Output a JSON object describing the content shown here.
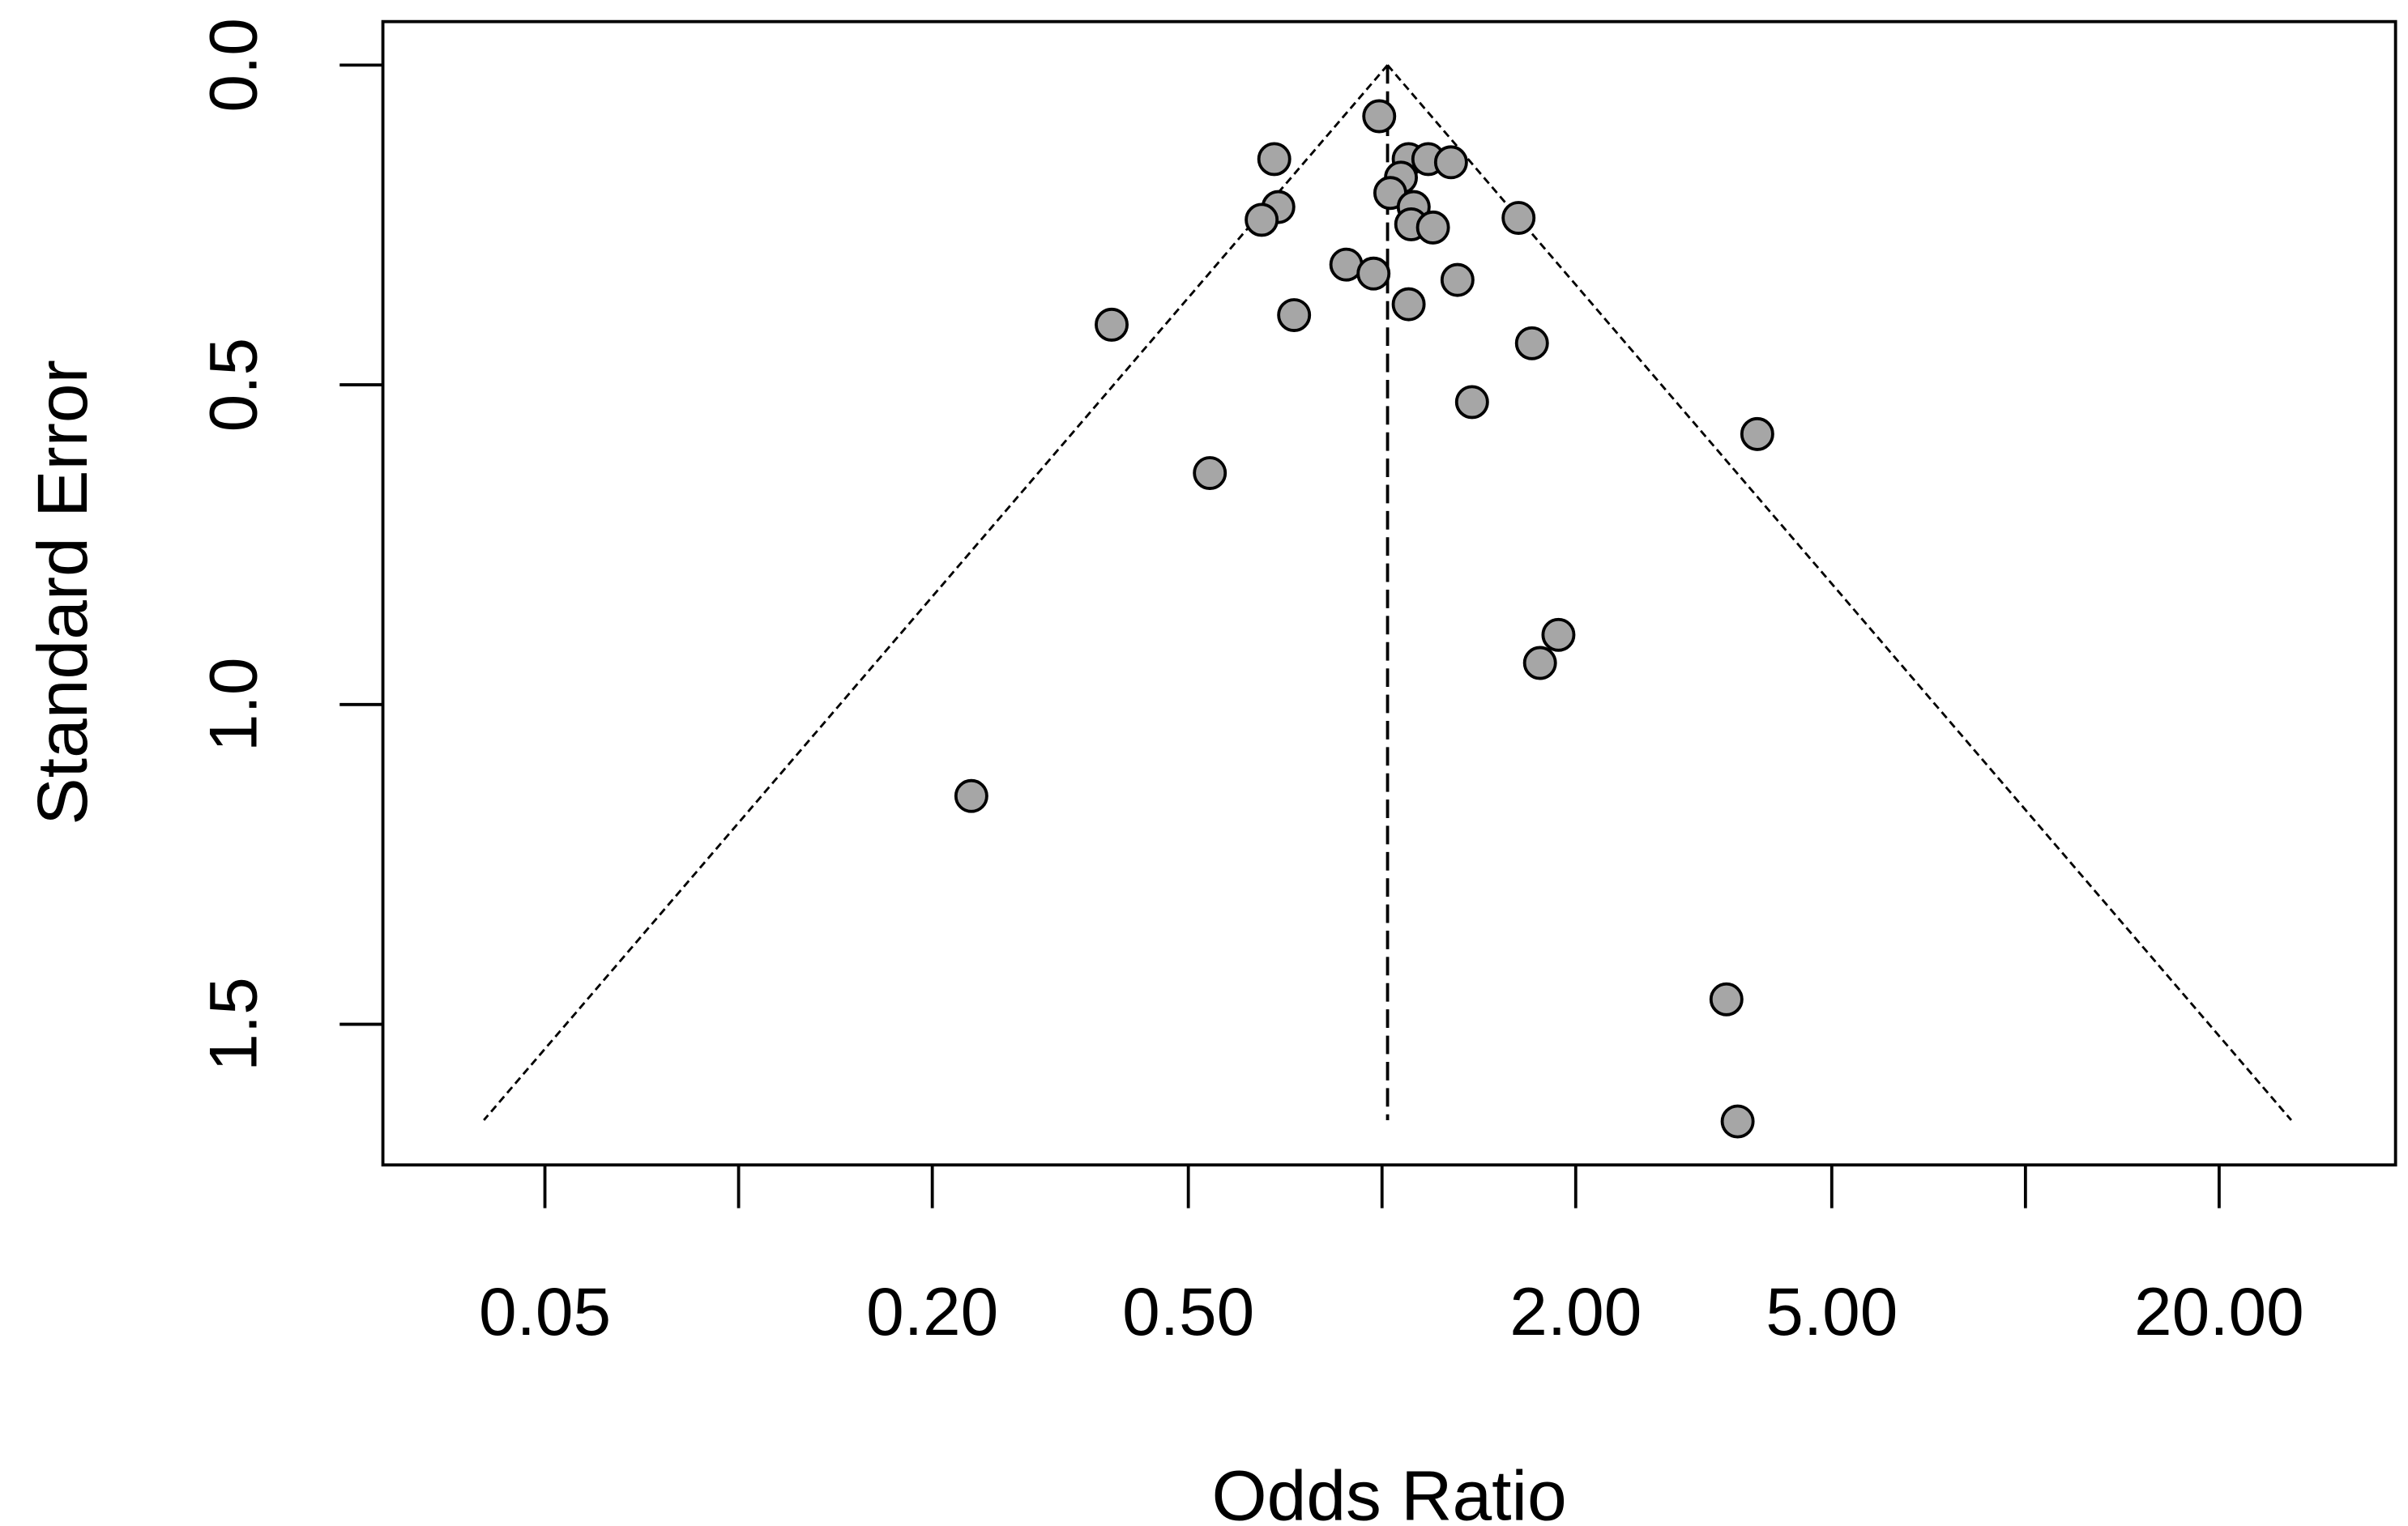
{
  "chart_data": {
    "type": "scatter",
    "subtype": "funnel plot",
    "title": "",
    "xlabel": "Odds Ratio",
    "ylabel": "Standard Error",
    "x_scale": "log",
    "y_reversed": true,
    "xlim": [
      0.028,
      37.6
    ],
    "ylim": [
      0,
      1.72
    ],
    "x_ticks": [
      0.05,
      0.1,
      0.2,
      0.5,
      1,
      2,
      5,
      10,
      20
    ],
    "x_tick_labels": [
      "0.05",
      "",
      "0.20",
      "0.50",
      "",
      "2.00",
      "5.00",
      "",
      "20.00"
    ],
    "y_ticks": [
      0,
      0.5,
      1,
      1.5
    ],
    "y_tick_labels": [
      "0.0",
      "0.5",
      "1.0",
      "1.5"
    ],
    "summary_or": 1.02,
    "funnel_max_se": 1.65,
    "grid": false,
    "point_fill": "#a6a6a6",
    "point_stroke": "#000000",
    "points": [
      {
        "or": 0.99,
        "se": 0.08
      },
      {
        "or": 0.68,
        "se": 0.147
      },
      {
        "or": 1.1,
        "se": 0.147
      },
      {
        "or": 1.18,
        "se": 0.147
      },
      {
        "or": 1.28,
        "se": 0.152
      },
      {
        "or": 1.07,
        "se": 0.176
      },
      {
        "or": 1.03,
        "se": 0.2
      },
      {
        "or": 0.69,
        "se": 0.222
      },
      {
        "or": 0.65,
        "se": 0.242
      },
      {
        "or": 1.12,
        "se": 0.222
      },
      {
        "or": 1.11,
        "se": 0.249
      },
      {
        "or": 1.2,
        "se": 0.254
      },
      {
        "or": 1.63,
        "se": 0.239
      },
      {
        "or": 0.88,
        "se": 0.312
      },
      {
        "or": 0.97,
        "se": 0.326
      },
      {
        "or": 1.31,
        "se": 0.336
      },
      {
        "or": 1.1,
        "se": 0.374
      },
      {
        "or": 0.73,
        "se": 0.391
      },
      {
        "or": 0.38,
        "se": 0.406
      },
      {
        "or": 1.71,
        "se": 0.435
      },
      {
        "or": 1.38,
        "se": 0.527
      },
      {
        "or": 3.83,
        "se": 0.577
      },
      {
        "or": 0.54,
        "se": 0.638
      },
      {
        "or": 1.88,
        "se": 0.891
      },
      {
        "or": 1.76,
        "se": 0.935
      },
      {
        "or": 0.23,
        "se": 1.143
      },
      {
        "or": 3.43,
        "se": 1.461
      },
      {
        "or": 3.57,
        "se": 1.652
      }
    ]
  }
}
